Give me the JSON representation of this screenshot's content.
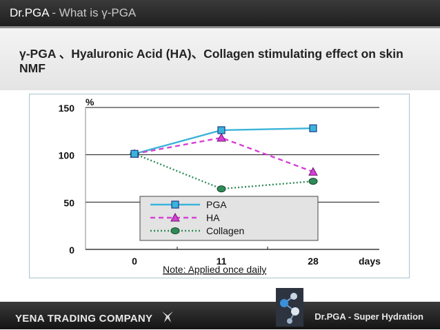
{
  "header": {
    "brand": "Dr.PGA",
    "separator": " - ",
    "subtitle": "What is γ-PGA"
  },
  "title": "γ-PGA 、Hyaluronic Acid (HA)、Collagen stimulating effect on skin NMF",
  "chart_data": {
    "type": "line",
    "title": "",
    "ylabel": "%",
    "xlabel": "days",
    "x": [
      "0",
      "11",
      "28"
    ],
    "x_values": [
      0,
      11,
      28
    ],
    "ylim": [
      0,
      150
    ],
    "yticks": [
      "0",
      "50",
      "100",
      "150"
    ],
    "grid": "horizontal",
    "legend_position": "bottom-center",
    "series": [
      {
        "name": "PGA",
        "values": [
          101,
          126,
          128
        ],
        "color": "#3ab4d9",
        "style": "solid",
        "marker": "square"
      },
      {
        "name": "HA",
        "values": [
          101,
          118,
          82
        ],
        "color": "#d63fd6",
        "style": "dashed",
        "marker": "triangle"
      },
      {
        "name": "Collagen",
        "values": [
          101,
          64,
          72
        ],
        "color": "#2e8b57",
        "style": "dotted",
        "marker": "circle"
      }
    ],
    "annotation": "Note: Applied once daily"
  },
  "footer": {
    "company": "YENA TRADING COMPANY",
    "tagline": "Dr.PGA - Super Hydration"
  }
}
